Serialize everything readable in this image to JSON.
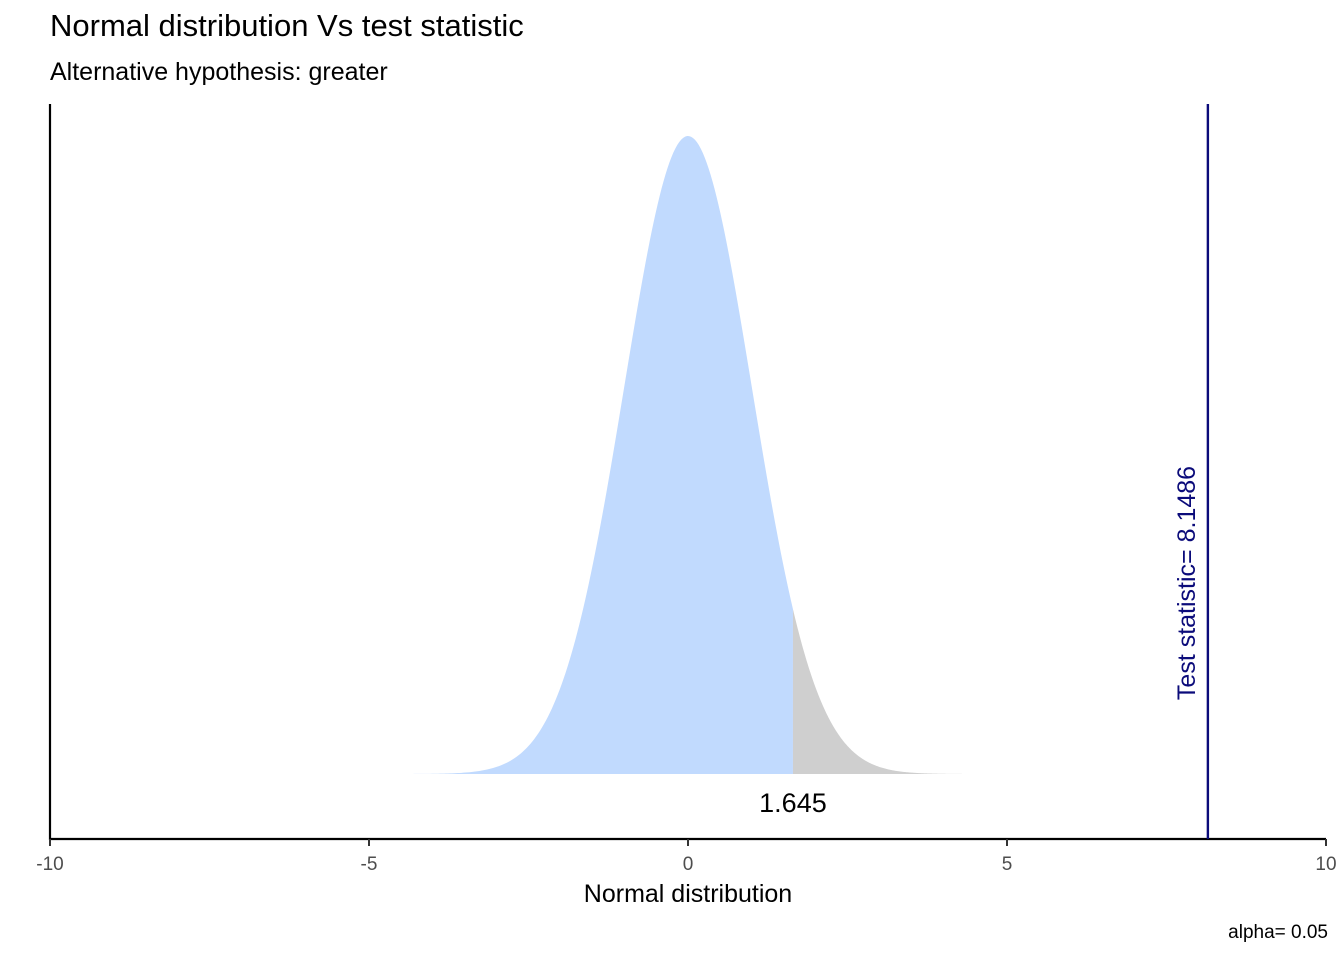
{
  "chart_data": {
    "type": "area",
    "title": "Normal distribution Vs test statistic",
    "subtitle": "Alternative hypothesis: greater",
    "xlabel": "Normal distribution",
    "ylabel": "",
    "caption": "alpha= 0.05",
    "xlim": [
      -10,
      10
    ],
    "x_ticks": [
      -10,
      -5,
      0,
      5,
      10
    ],
    "x_tick_labels": [
      "-10",
      "-5",
      "0",
      "5",
      "10"
    ],
    "y_ticks_shown": false,
    "distribution": {
      "name": "standard normal",
      "mean": 0,
      "sd": 1,
      "x_range": [
        -4.5,
        4.5
      ]
    },
    "regions": [
      {
        "from": -4.5,
        "to": 1.645,
        "color": "#c1dafe"
      },
      {
        "from": 1.645,
        "to": 4.5,
        "color": "#cfcfcf"
      }
    ],
    "critical_value": 1.645,
    "critical_value_label": "1.645",
    "test_statistic": 8.1486,
    "test_statistic_label": "Test statistic= 8.1486",
    "test_statistic_color": "#0b0b7a",
    "grid": false,
    "legend": "none"
  }
}
